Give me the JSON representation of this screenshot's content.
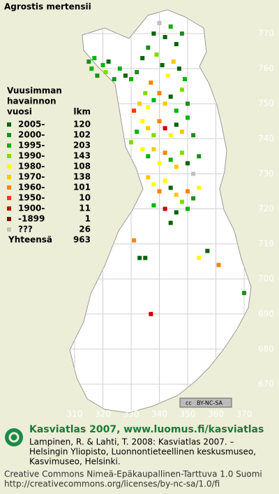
{
  "map": {
    "title": "Agrostis mertensii",
    "legend": {
      "header_lines": [
        "Vuusimman",
        "havainnon",
        "vuosi"
      ],
      "count_header": "lkm",
      "entries": [
        {
          "label": "2005-",
          "count": 120,
          "color": "#006400"
        },
        {
          "label": "2000-",
          "count": 102,
          "color": "#1e8c1e"
        },
        {
          "label": "1995-",
          "count": 203,
          "color": "#00b400"
        },
        {
          "label": "1990-",
          "count": 143,
          "color": "#7ddc00"
        },
        {
          "label": "1980-",
          "count": 108,
          "color": "#ffff00"
        },
        {
          "label": "1970-",
          "count": 138,
          "color": "#ffc800"
        },
        {
          "label": "1960-",
          "count": 101,
          "color": "#ff8200"
        },
        {
          "label": "1950-",
          "count": 10,
          "color": "#f03c00"
        },
        {
          "label": "1900-",
          "count": 11,
          "color": "#c80000"
        },
        {
          "label": "-1899",
          "count": 1,
          "color": "#8c0000"
        },
        {
          "label": "???",
          "count": 26,
          "color": "#c0c0c0"
        }
      ],
      "total_label": "Yhteensä",
      "total": 963
    },
    "yticks": [
      770,
      760,
      750,
      740,
      730,
      720,
      710,
      700,
      690,
      680,
      670
    ],
    "xticks": [
      310,
      320,
      330,
      340,
      350,
      360,
      370
    ],
    "cells": [
      [
        315,
        762,
        1
      ],
      [
        316,
        760,
        2
      ],
      [
        317,
        763,
        2
      ],
      [
        318,
        758,
        1
      ],
      [
        320,
        761,
        2
      ],
      [
        321,
        759,
        3
      ],
      [
        322,
        762,
        0
      ],
      [
        324,
        757,
        1
      ],
      [
        326,
        760,
        2
      ],
      [
        328,
        758,
        0
      ],
      [
        330,
        757,
        2
      ],
      [
        332,
        759,
        1
      ],
      [
        334,
        763,
        0
      ],
      [
        336,
        766,
        1
      ],
      [
        338,
        770,
        0
      ],
      [
        340,
        773,
        10
      ],
      [
        342,
        769,
        0
      ],
      [
        344,
        772,
        2
      ],
      [
        346,
        767,
        0
      ],
      [
        348,
        770,
        1
      ],
      [
        339,
        764,
        3
      ],
      [
        341,
        761,
        0
      ],
      [
        343,
        758,
        4
      ],
      [
        345,
        762,
        5
      ],
      [
        347,
        760,
        0
      ],
      [
        349,
        757,
        2
      ],
      [
        337,
        756,
        6
      ],
      [
        335,
        753,
        3
      ],
      [
        333,
        750,
        5
      ],
      [
        331,
        748,
        7
      ],
      [
        336,
        749,
        4
      ],
      [
        338,
        751,
        2
      ],
      [
        340,
        753,
        6
      ],
      [
        342,
        750,
        5
      ],
      [
        344,
        752,
        0
      ],
      [
        346,
        748,
        2
      ],
      [
        348,
        754,
        3
      ],
      [
        350,
        750,
        1
      ],
      [
        334,
        745,
        4
      ],
      [
        332,
        742,
        2
      ],
      [
        336,
        743,
        5
      ],
      [
        338,
        741,
        3
      ],
      [
        340,
        745,
        6
      ],
      [
        342,
        743,
        8
      ],
      [
        344,
        741,
        4
      ],
      [
        346,
        744,
        0
      ],
      [
        348,
        742,
        5
      ],
      [
        350,
        746,
        2
      ],
      [
        352,
        741,
        1
      ],
      [
        330,
        739,
        3
      ],
      [
        334,
        737,
        4
      ],
      [
        336,
        735,
        2
      ],
      [
        338,
        737,
        5
      ],
      [
        340,
        733,
        4
      ],
      [
        342,
        736,
        6
      ],
      [
        344,
        734,
        2
      ],
      [
        346,
        732,
        5
      ],
      [
        348,
        736,
        3
      ],
      [
        350,
        733,
        0
      ],
      [
        352,
        730,
        10
      ],
      [
        354,
        735,
        1
      ],
      [
        336,
        729,
        5
      ],
      [
        338,
        727,
        4
      ],
      [
        340,
        725,
        6
      ],
      [
        342,
        728,
        4
      ],
      [
        344,
        726,
        0
      ],
      [
        346,
        724,
        5
      ],
      [
        348,
        722,
        3
      ],
      [
        350,
        725,
        6
      ],
      [
        352,
        723,
        1
      ],
      [
        338,
        721,
        2
      ],
      [
        342,
        720,
        8
      ],
      [
        346,
        719,
        0
      ],
      [
        350,
        720,
        2
      ],
      [
        354,
        726,
        4
      ],
      [
        331,
        711,
        6
      ],
      [
        335,
        706,
        0
      ],
      [
        333,
        706,
        0
      ],
      [
        354,
        706,
        4
      ],
      [
        357,
        708,
        0
      ],
      [
        361,
        704,
        6
      ],
      [
        370,
        696,
        1
      ],
      [
        337,
        690,
        8
      ],
      [
        344,
        716,
        0
      ]
    ],
    "badge": {
      "symbol": "cc",
      "text": "BY-NC-SA"
    },
    "footer": {
      "heading": "Kasviatlas 2007, www.luomus.fi/kasviatlas",
      "citation_lines": [
        "Lampinen, R. & Lahti, T. 2008: Kasviatlas 2007. –",
        "Helsingin Yliopisto, Luonnontieteellinen keskusmuseo,",
        "Kasvimuseo, Helsinki."
      ],
      "license_lines": [
        "Creative Commons Nimeä-Epäkaupallinen-Tarttuva 1.0 Suomi",
        "http://creativecommons.org/licenses/by-nc-sa/1.0/fi"
      ]
    }
  }
}
